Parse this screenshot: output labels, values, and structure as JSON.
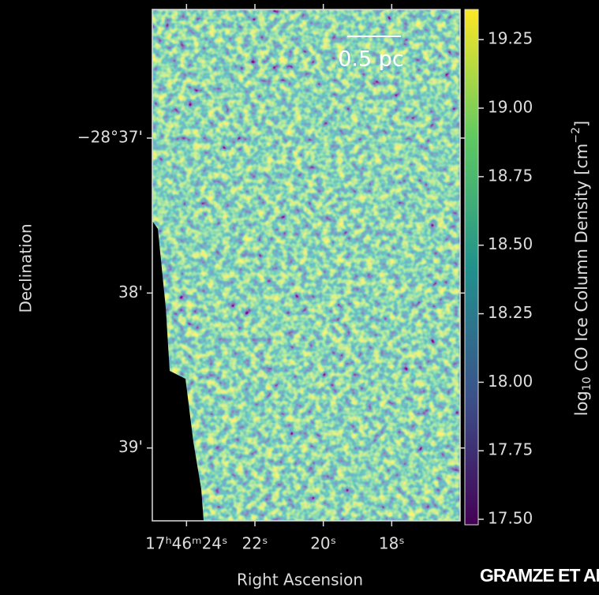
{
  "chart_data": {
    "type": "image",
    "xlabel": "Right Ascension",
    "ylabel": "Declination",
    "colorbar_label": [
      "log",
      "10",
      " CO Ice Column Density [cm",
      "−2",
      "]"
    ],
    "xlim": [
      25.0,
      16.0
    ],
    "xticks": [
      {
        "value": 24,
        "label": "17ʰ46ᵐ24ˢ"
      },
      {
        "value": 22,
        "label": "22ˢ"
      },
      {
        "value": 20,
        "label": "20ˢ"
      },
      {
        "value": 18,
        "label": "18ˢ"
      }
    ],
    "ylim": [
      39.47,
      36.17
    ],
    "yticks": [
      {
        "value": 37,
        "label": "−28°37'"
      },
      {
        "value": 38,
        "label": "38'"
      },
      {
        "value": 39,
        "label": "39'"
      }
    ],
    "clim": [
      17.48,
      19.36
    ],
    "cticks": [
      {
        "value": 17.5,
        "label": "17.50"
      },
      17.75,
      {
        "value": 18.0,
        "label": "18.00"
      },
      18.25,
      {
        "value": 18.5,
        "label": "18.50"
      },
      18.75,
      {
        "value": 19.0,
        "label": "19.00"
      },
      19.25
    ],
    "colormap": "viridis",
    "scale_bar_label": "0.5 pc",
    "watermark": "GRAMZE ET AL"
  }
}
